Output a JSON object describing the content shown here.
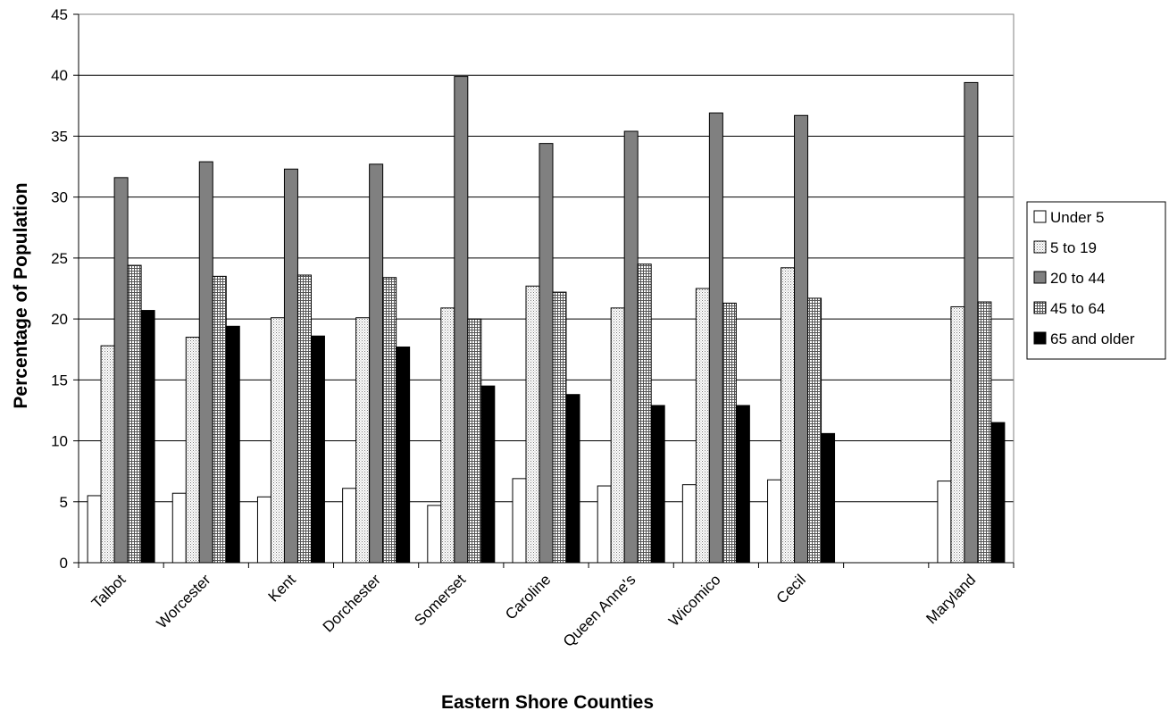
{
  "chart_data": {
    "type": "bar",
    "title": "",
    "xlabel": "Eastern Shore Counties",
    "ylabel": "Percentage of Population",
    "ylim": [
      0,
      45
    ],
    "yticks": [
      0,
      5,
      10,
      15,
      20,
      25,
      30,
      35,
      40,
      45
    ],
    "grid": true,
    "legend_position": "right",
    "categories": [
      "Talbot",
      "Worcester",
      "Kent",
      "Dorchester",
      "Somerset",
      "Caroline",
      "Queen Anne's",
      "Wicomico",
      "Cecil",
      "",
      "Maryland"
    ],
    "series": [
      {
        "name": "Under 5",
        "pattern": "white",
        "values": [
          5.5,
          5.7,
          5.4,
          6.1,
          4.7,
          6.9,
          6.3,
          6.4,
          6.8,
          null,
          6.7
        ]
      },
      {
        "name": "5 to 19",
        "pattern": "fine-dots",
        "values": [
          17.8,
          18.5,
          20.1,
          20.1,
          20.9,
          22.7,
          20.9,
          22.5,
          24.2,
          null,
          21.0
        ]
      },
      {
        "name": "20 to 44",
        "pattern": "solid-gray",
        "values": [
          31.6,
          32.9,
          32.3,
          32.7,
          39.9,
          34.4,
          35.4,
          36.9,
          36.7,
          null,
          39.4
        ]
      },
      {
        "name": "45 to 64",
        "pattern": "grid",
        "values": [
          24.4,
          23.5,
          23.6,
          23.4,
          20.0,
          22.2,
          24.5,
          21.3,
          21.7,
          null,
          21.4
        ]
      },
      {
        "name": "65 and older",
        "pattern": "solid-black",
        "values": [
          20.7,
          19.4,
          18.6,
          17.7,
          14.5,
          13.8,
          12.9,
          12.9,
          10.6,
          null,
          11.5
        ]
      }
    ],
    "colors": {
      "gridline": "#000000",
      "gray_fill": "#808080",
      "black_fill": "#000000",
      "outline": "#000000"
    }
  }
}
